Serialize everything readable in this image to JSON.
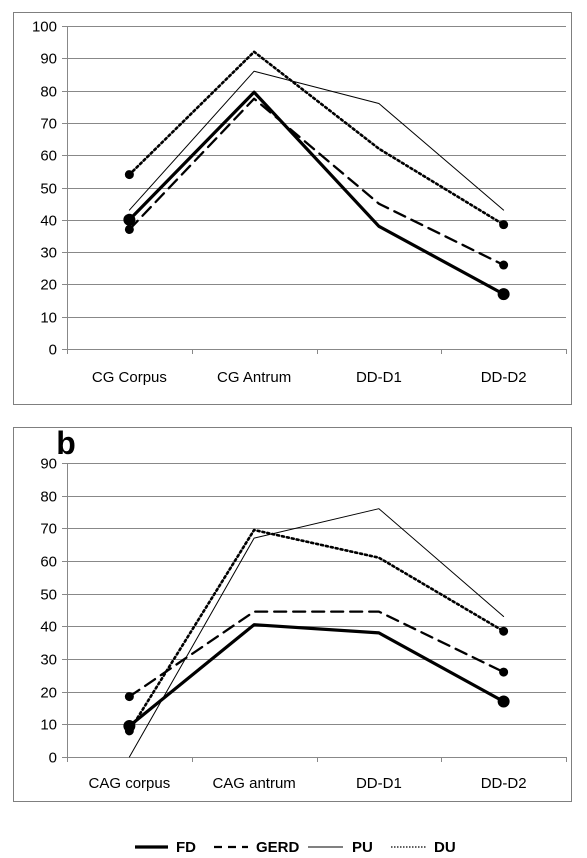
{
  "styles": {
    "FD": {
      "dash": "",
      "width": 3.2,
      "marker": 6
    },
    "GERD": {
      "dash": "12 7",
      "width": 2.3,
      "marker": 4.5
    },
    "PU": {
      "dash": "",
      "width": 1,
      "marker": 0
    },
    "DU": {
      "dash": "2 3",
      "width": 2.6,
      "marker": 4.5
    }
  },
  "legend": [
    {
      "series": "FD",
      "label": "FD"
    },
    {
      "series": "GERD",
      "label": "GERD"
    },
    {
      "series": "PU",
      "label": "PU"
    },
    {
      "series": "DU",
      "label": "DU"
    }
  ],
  "chart_data": [
    {
      "type": "line",
      "panel_label": "",
      "categories": [
        "CG Corpus",
        "CG Antrum",
        "DD-D1",
        "DD-D2"
      ],
      "ylim": [
        0,
        100
      ],
      "yticks": [
        0,
        10,
        20,
        30,
        40,
        50,
        60,
        70,
        80,
        90,
        100
      ],
      "grid": true,
      "series": [
        {
          "name": "FD",
          "values": [
            40,
            79.5,
            38,
            17
          ],
          "markers": [
            true,
            false,
            false,
            true
          ]
        },
        {
          "name": "GERD",
          "values": [
            37,
            77.5,
            45,
            26
          ],
          "markers": [
            true,
            false,
            false,
            true
          ]
        },
        {
          "name": "PU",
          "values": [
            43,
            86,
            76,
            43
          ],
          "markers": [
            true,
            false,
            false,
            true
          ]
        },
        {
          "name": "DU",
          "values": [
            54,
            92,
            62,
            38.5
          ],
          "markers": [
            true,
            false,
            false,
            true
          ]
        }
      ]
    },
    {
      "type": "line",
      "panel_label": "b",
      "categories": [
        "CAG corpus",
        "CAG antrum",
        "DD-D1",
        "DD-D2"
      ],
      "ylim": [
        0,
        90
      ],
      "yticks": [
        0,
        10,
        20,
        30,
        40,
        50,
        60,
        70,
        80,
        90
      ],
      "grid": true,
      "series": [
        {
          "name": "FD",
          "values": [
            9.5,
            40.5,
            38,
            17
          ],
          "markers": [
            true,
            false,
            false,
            true
          ]
        },
        {
          "name": "GERD",
          "values": [
            18.5,
            44.5,
            44.5,
            26
          ],
          "markers": [
            true,
            false,
            false,
            true
          ]
        },
        {
          "name": "PU",
          "values": [
            0,
            67,
            76,
            43
          ],
          "markers": [
            true,
            false,
            false,
            true
          ]
        },
        {
          "name": "DU",
          "values": [
            8,
            69.5,
            61,
            38.5
          ],
          "markers": [
            true,
            false,
            false,
            true
          ]
        }
      ]
    }
  ]
}
